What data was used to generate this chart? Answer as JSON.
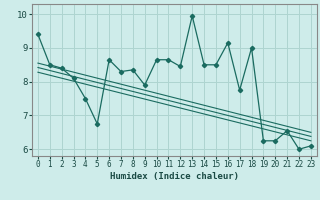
{
  "title": "",
  "xlabel": "Humidex (Indice chaleur)",
  "xlim": [
    -0.5,
    23.5
  ],
  "ylim": [
    5.8,
    10.3
  ],
  "xticks": [
    0,
    1,
    2,
    3,
    4,
    5,
    6,
    7,
    8,
    9,
    10,
    11,
    12,
    13,
    14,
    15,
    16,
    17,
    18,
    19,
    20,
    21,
    22,
    23
  ],
  "yticks": [
    6,
    7,
    8,
    9,
    10
  ],
  "background_color": "#ceecea",
  "grid_color": "#aed4d0",
  "line_color": "#1a6b60",
  "series1_x": [
    0,
    1,
    2,
    3,
    4,
    5,
    6,
    7,
    8,
    9,
    10,
    11,
    12,
    13,
    14,
    15,
    16,
    17,
    18,
    19,
    20,
    21,
    22,
    23
  ],
  "series1_y": [
    9.4,
    8.5,
    8.4,
    8.1,
    7.5,
    6.75,
    8.65,
    8.3,
    8.35,
    7.9,
    8.65,
    8.65,
    8.45,
    9.95,
    8.5,
    8.5,
    9.15,
    7.75,
    9.0,
    6.25,
    6.25,
    6.55,
    6.0,
    6.1
  ],
  "trend1_y_start": 8.55,
  "trend1_y_end": 6.5,
  "trend2_y_start": 8.42,
  "trend2_y_end": 6.38,
  "trend3_y_start": 8.28,
  "trend3_y_end": 6.25,
  "spine_color": "#888888"
}
